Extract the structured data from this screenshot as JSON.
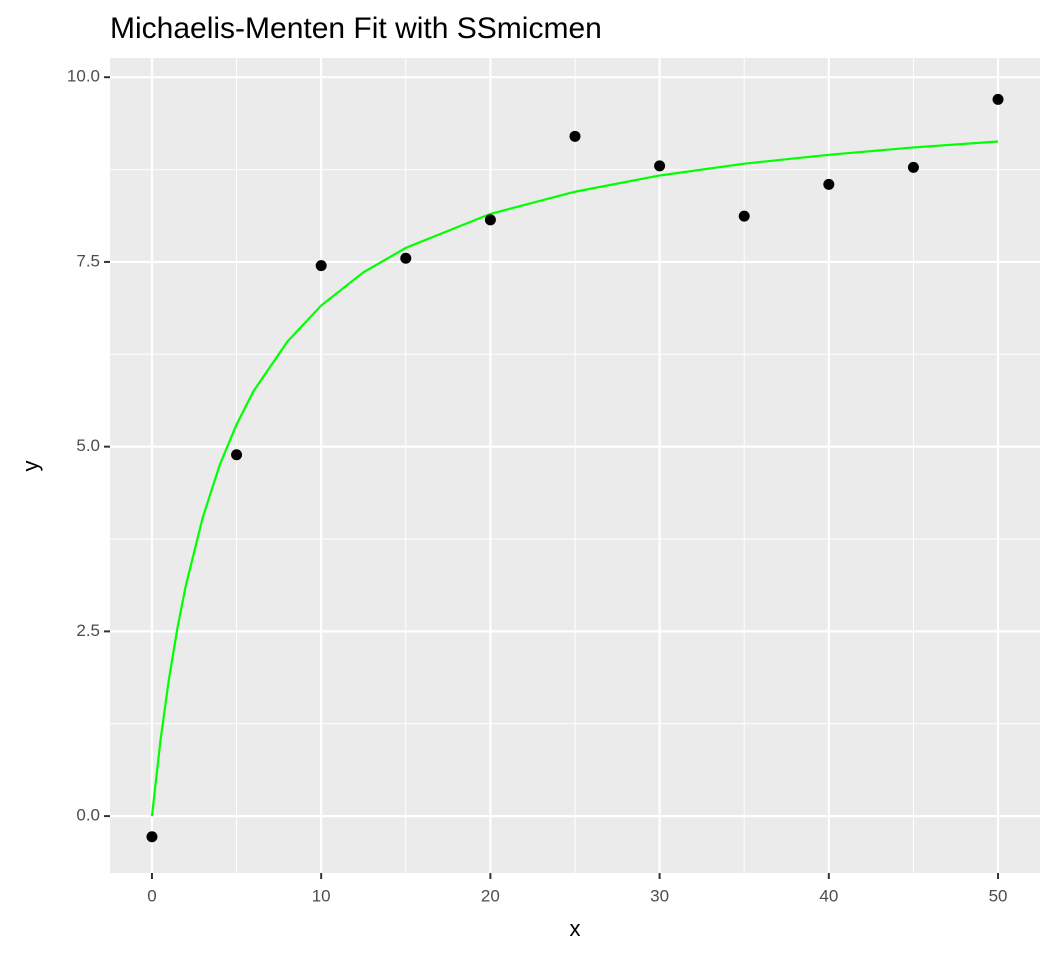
{
  "chart_data": {
    "type": "scatter",
    "title": "Michaelis-Menten Fit with SSmicmen",
    "x_label": "x",
    "y_label": "y",
    "points": {
      "x": [
        0,
        5,
        10,
        15,
        20,
        25,
        30,
        35,
        40,
        45,
        50
      ],
      "y": [
        -0.28,
        4.89,
        7.45,
        7.55,
        8.07,
        9.2,
        8.8,
        8.12,
        8.55,
        8.78,
        9.7
      ],
      "color": "#000000"
    },
    "fit": {
      "x": [
        0,
        0.5,
        1,
        1.5,
        2,
        3,
        4,
        5,
        6,
        8,
        10,
        12.5,
        15,
        20,
        25,
        30,
        35,
        40,
        45,
        50
      ],
      "y": [
        0,
        1.02,
        1.85,
        2.54,
        3.12,
        4.04,
        4.75,
        5.3,
        5.75,
        6.42,
        6.91,
        7.36,
        7.69,
        8.15,
        8.45,
        8.67,
        8.83,
        8.95,
        9.05,
        9.13
      ],
      "color": "#00ff00"
    },
    "xlim": [
      -2.48,
      52.48
    ],
    "ylim": [
      -0.77,
      10.26
    ],
    "xticks": [
      0,
      10,
      20,
      30,
      40,
      50
    ],
    "yticks": [
      {
        "value": 0,
        "label": "0.0"
      },
      {
        "value": 2.5,
        "label": "2.5"
      },
      {
        "value": 5,
        "label": "5.0"
      },
      {
        "value": 7.5,
        "label": "7.5"
      },
      {
        "value": 10,
        "label": "10.0"
      }
    ],
    "grid": true,
    "minor_grid": true
  }
}
